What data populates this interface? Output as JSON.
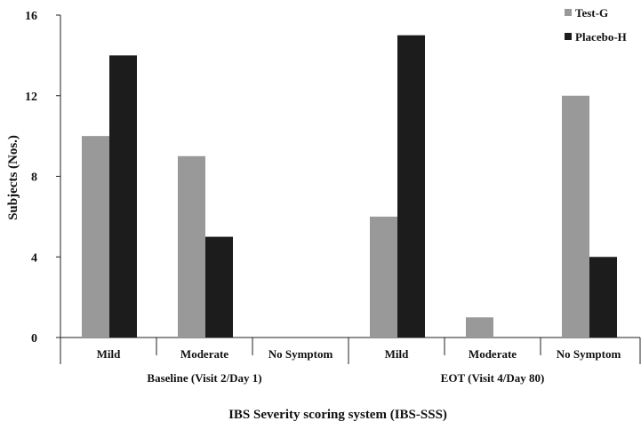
{
  "chart_data": {
    "type": "bar",
    "title": "",
    "xlabel": "IBS Severity scoring system (IBS-SSS)",
    "ylabel": "Subjects (Nos.)",
    "ylim": [
      0,
      16
    ],
    "yticks": [
      0,
      4,
      8,
      12,
      16
    ],
    "grid": false,
    "legend": "top-right",
    "groups": [
      {
        "label": "Baseline (Visit 2/Day 1)",
        "categories": [
          "Mild",
          "Moderate",
          "No Symptom"
        ]
      },
      {
        "label": "EOT (Visit 4/Day 80)",
        "categories": [
          "Mild",
          "Moderate",
          "No Symptom"
        ]
      }
    ],
    "categories": [
      "Mild",
      "Moderate",
      "No Symptom",
      "Mild",
      "Moderate",
      "No Symptom"
    ],
    "series": [
      {
        "name": "Test-G",
        "color": "#999999",
        "values": [
          10,
          9,
          0,
          6,
          1,
          12
        ]
      },
      {
        "name": "Placebo-H",
        "color": "#1c1c1c",
        "values": [
          14,
          5,
          0,
          15,
          0,
          4
        ]
      }
    ]
  }
}
